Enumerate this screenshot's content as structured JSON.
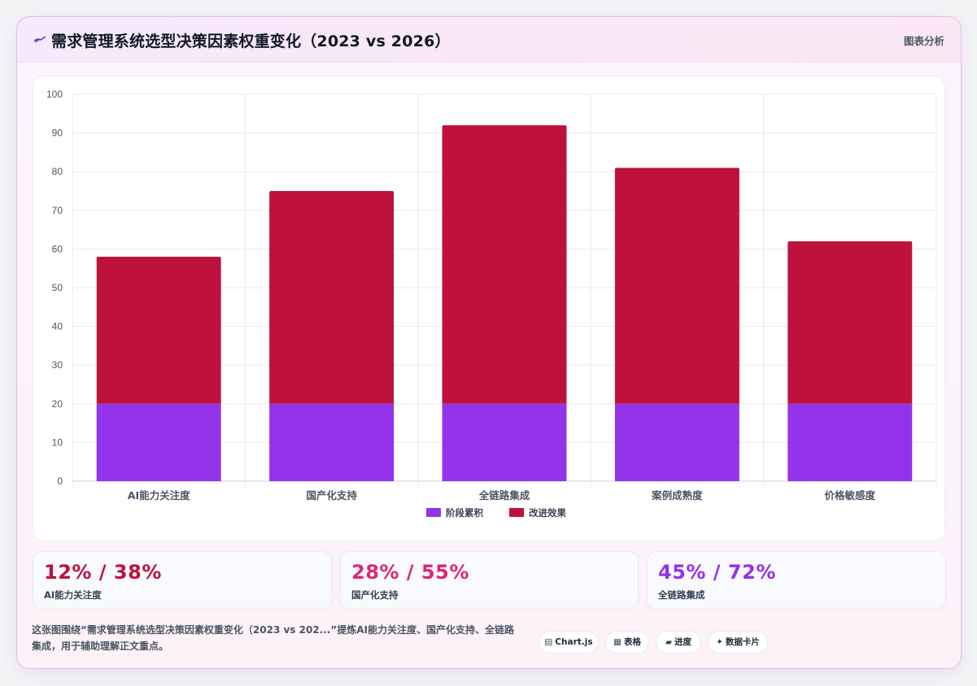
{
  "header": {
    "title": "需求管理系统选型决策因素权重变化（2023 vs 2026）",
    "tag": "图表分析",
    "icon": "sparkline-icon"
  },
  "chart_data": {
    "type": "bar",
    "stacked": true,
    "categories": [
      "AI能力关注度",
      "国产化支持",
      "全链路集成",
      "案例成熟度",
      "价格敏感度"
    ],
    "series": [
      {
        "name": "阶段累积",
        "color": "#9333ea",
        "values": [
          20,
          20,
          20,
          20,
          20
        ]
      },
      {
        "name": "改进效果",
        "color": "#be123c",
        "values": [
          38,
          55,
          72,
          61,
          42
        ]
      }
    ],
    "ylim": [
      0,
      100
    ],
    "yticks": [
      "0",
      "10",
      "20",
      "30",
      "40",
      "50",
      "60",
      "70",
      "80",
      "90",
      "100"
    ],
    "grid": true,
    "legend": "bottom"
  },
  "stats": [
    {
      "value": "12% / 38%",
      "label": "AI能力关注度",
      "color": "#be123c"
    },
    {
      "value": "28% / 55%",
      "label": "国产化支持",
      "color": "#db2777"
    },
    {
      "value": "45% / 72%",
      "label": "全链路集成",
      "color": "#9333ea"
    }
  ],
  "description": "这张图围绕“需求管理系统选型决策因素权重变化（2023 vs 202...”提炼AI能力关注度、国产化支持、全链路集成，用于辅助理解正文重点。",
  "chips": [
    {
      "label": "Chart.js",
      "icon": "chart-icon"
    },
    {
      "label": "表格",
      "icon": "table-icon"
    },
    {
      "label": "进度",
      "icon": "progress-icon"
    },
    {
      "label": "数据卡片",
      "icon": "card-icon"
    }
  ]
}
